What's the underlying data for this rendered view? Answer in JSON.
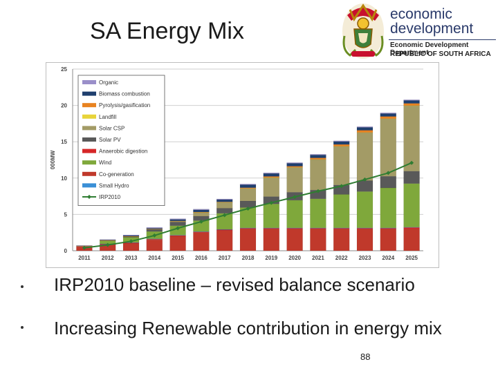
{
  "slide": {
    "title": "SA Energy Mix",
    "bullets": [
      "IRP2010 baseline – revised balance scenario",
      "Increasing Renewable contribution in energy mix"
    ],
    "page_number": "88"
  },
  "logo": {
    "line1": "economic",
    "line2": "development",
    "dept": "Economic Development Department",
    "country": "REPUBLIC OF SOUTH AFRICA"
  },
  "chart_data": {
    "type": "bar",
    "stacked": true,
    "ylabel": "000MW",
    "ylim": [
      0,
      25
    ],
    "yticks": [
      0,
      5,
      10,
      15,
      20,
      25
    ],
    "grid": true,
    "legend_position": "top-left",
    "categories": [
      "2011",
      "2012",
      "2013",
      "2014",
      "2015",
      "2016",
      "2017",
      "2018",
      "2019",
      "2020",
      "2021",
      "2022",
      "2023",
      "2024",
      "2025"
    ],
    "series": [
      {
        "name": "Co-generation",
        "color": "#c0392b",
        "values": [
          0.5,
          0.8,
          1.0,
          1.5,
          2.0,
          2.5,
          2.8,
          3.0,
          3.0,
          3.0,
          3.0,
          3.0,
          3.0,
          3.0,
          3.0
        ]
      },
      {
        "name": "Anaerobic digestion",
        "color": "#d62728",
        "values": [
          0.1,
          0.1,
          0.1,
          0.1,
          0.1,
          0.1,
          0.1,
          0.1,
          0.1,
          0.1,
          0.1,
          0.1,
          0.1,
          0.1,
          0.2
        ]
      },
      {
        "name": "Small Hydro",
        "color": "#3a8fd6",
        "values": [
          0.05,
          0.05,
          0.05,
          0.05,
          0.05,
          0.05,
          0.05,
          0.05,
          0.05,
          0.05,
          0.05,
          0.05,
          0.05,
          0.05,
          0.05
        ]
      },
      {
        "name": "Wind",
        "color": "#7fa83b",
        "values": [
          0.0,
          0.4,
          0.7,
          1.0,
          1.3,
          1.5,
          2.2,
          2.8,
          3.3,
          3.8,
          4.0,
          4.6,
          5.0,
          5.5,
          6.0
        ]
      },
      {
        "name": "Solar PV",
        "color": "#595959",
        "values": [
          0.0,
          0.05,
          0.1,
          0.3,
          0.5,
          0.6,
          0.7,
          0.9,
          1.0,
          1.1,
          1.2,
          1.3,
          1.5,
          1.6,
          1.7
        ]
      },
      {
        "name": "Solar CSP",
        "color": "#a39b66",
        "values": [
          0.0,
          0.0,
          0.0,
          0.0,
          0.1,
          0.5,
          0.8,
          1.7,
          2.6,
          3.4,
          4.2,
          5.3,
          6.6,
          7.9,
          9.0
        ]
      },
      {
        "name": "Landfill",
        "color": "#e8d43a",
        "values": [
          0.02,
          0.02,
          0.02,
          0.03,
          0.03,
          0.03,
          0.03,
          0.03,
          0.03,
          0.03,
          0.03,
          0.03,
          0.03,
          0.03,
          0.03
        ]
      },
      {
        "name": "Pyrolysis/gasification",
        "color": "#e8821f",
        "values": [
          0.02,
          0.03,
          0.03,
          0.03,
          0.03,
          0.05,
          0.05,
          0.1,
          0.15,
          0.15,
          0.2,
          0.25,
          0.3,
          0.3,
          0.3
        ]
      },
      {
        "name": "Biomass combustion",
        "color": "#1f3f6e",
        "values": [
          0.0,
          0.05,
          0.1,
          0.1,
          0.2,
          0.3,
          0.3,
          0.4,
          0.4,
          0.4,
          0.4,
          0.4,
          0.4,
          0.4,
          0.4
        ]
      },
      {
        "name": "Organic",
        "color": "#9a8fc9",
        "values": [
          0.05,
          0.05,
          0.08,
          0.1,
          0.1,
          0.1,
          0.1,
          0.1,
          0.1,
          0.1,
          0.1,
          0.1,
          0.1,
          0.1,
          0.1
        ]
      }
    ],
    "line_series": {
      "name": "IRP2010",
      "color": "#2f7d32",
      "values": [
        0.4,
        0.8,
        1.3,
        2.1,
        3.1,
        4.0,
        4.9,
        5.8,
        6.6,
        7.4,
        8.2,
        8.9,
        9.8,
        10.7,
        12.1
      ]
    },
    "legend_order": [
      "Organic",
      "Biomass combustion",
      "Pyrolysis/gasification",
      "Landfill",
      "Solar CSP",
      "Solar PV",
      "Anaerobic digestion",
      "Wind",
      "Co-generation",
      "Small Hydro",
      "IRP2010"
    ]
  }
}
